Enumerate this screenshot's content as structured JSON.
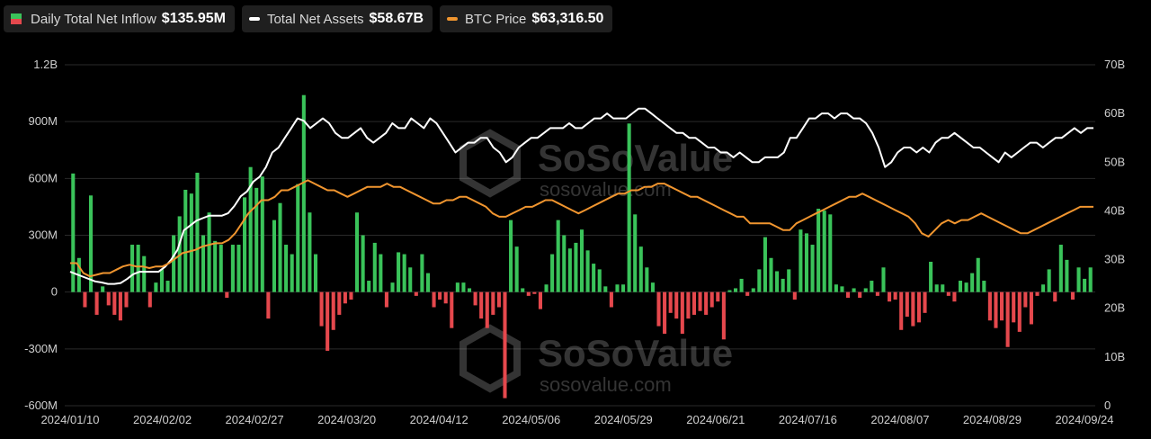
{
  "legend": [
    {
      "label": "Daily Total Net Inflow",
      "value": "$135.95M",
      "swatch": "bar"
    },
    {
      "label": "Total Net Assets",
      "value": "$58.67B",
      "swatch": "line",
      "color": "#ffffff"
    },
    {
      "label": "BTC Price",
      "value": "$63,316.50",
      "swatch": "line",
      "color": "#f0952f"
    }
  ],
  "watermark": {
    "brand": "SoSoValue",
    "url": "sosovalue.com"
  },
  "colors": {
    "inflow_positive": "#3ac35a",
    "inflow_negative": "#e5484d",
    "assets": "#ffffff",
    "btc": "#f0952f",
    "grid": "#2a2a2a"
  },
  "chart_data": {
    "type": "bar+line",
    "x_tick_labels": [
      "2024/01/10",
      "2024/02/02",
      "2024/02/27",
      "2024/03/20",
      "2024/04/12",
      "2024/05/06",
      "2024/05/29",
      "2024/06/21",
      "2024/07/16",
      "2024/08/07",
      "2024/08/29",
      "2024/09/24"
    ],
    "y_left": {
      "ticks": [
        "1.2B",
        "900M",
        "600M",
        "300M",
        "0",
        "-300M",
        "-600M"
      ],
      "range": [
        -600,
        1200
      ],
      "unit": "M"
    },
    "y_right": {
      "ticks": [
        "70B",
        "60B",
        "50B",
        "40B",
        "30B",
        "20B",
        "10B",
        "0"
      ],
      "range": [
        0,
        70
      ],
      "unit": "B"
    },
    "grid": "horizontal",
    "series": [
      {
        "name": "Daily Total Net Inflow",
        "kind": "bar",
        "axis": "left",
        "values": [
          626,
          180,
          -80,
          510,
          -120,
          30,
          -70,
          -120,
          -150,
          -80,
          250,
          250,
          190,
          -80,
          50,
          120,
          60,
          300,
          400,
          540,
          520,
          630,
          300,
          420,
          270,
          250,
          -30,
          250,
          250,
          500,
          660,
          550,
          610,
          -140,
          380,
          470,
          250,
          200,
          570,
          1040,
          420,
          200,
          -180,
          -310,
          -200,
          -120,
          -60,
          -40,
          420,
          300,
          60,
          260,
          200,
          -80,
          50,
          210,
          200,
          130,
          -20,
          200,
          100,
          -80,
          -40,
          -60,
          -190,
          50,
          50,
          20,
          -70,
          -140,
          -190,
          -120,
          -80,
          -560,
          380,
          240,
          20,
          -20,
          -10,
          -90,
          40,
          200,
          380,
          300,
          230,
          260,
          330,
          220,
          150,
          120,
          30,
          -80,
          40,
          40,
          890,
          410,
          240,
          130,
          50,
          -180,
          -220,
          -110,
          -140,
          -220,
          -140,
          -120,
          -100,
          -120,
          -80,
          -50,
          -250,
          10,
          20,
          70,
          -20,
          20,
          120,
          290,
          180,
          110,
          70,
          120,
          -40,
          330,
          310,
          250,
          440,
          430,
          410,
          40,
          30,
          -30,
          20,
          -30,
          20,
          60,
          -20,
          130,
          -50,
          -40,
          -200,
          -130,
          -180,
          -160,
          -110,
          160,
          40,
          40,
          -20,
          -50,
          60,
          50,
          100,
          180,
          60,
          -150,
          -190,
          -150,
          -290,
          -160,
          -210,
          -80,
          -170,
          -20,
          40,
          120,
          -50,
          250,
          170,
          -40,
          130,
          70,
          130
        ]
      },
      {
        "name": "Total Net Assets",
        "kind": "line",
        "axis": "right",
        "values": [
          27.5,
          27,
          26.5,
          26,
          25.5,
          25.3,
          25,
          25,
          25.2,
          26,
          27,
          27.5,
          27.5,
          27.5,
          27.5,
          28.5,
          30,
          32,
          36,
          37,
          38,
          38.5,
          39,
          39,
          39,
          39.5,
          41,
          43,
          44,
          46,
          47,
          49,
          52,
          53,
          55,
          57,
          59,
          58.5,
          57,
          58,
          59,
          58,
          56,
          55,
          55,
          56,
          57,
          55,
          54,
          55,
          56,
          58,
          57,
          57,
          59,
          58,
          57,
          59,
          58,
          56,
          54,
          52,
          53,
          54,
          54,
          55,
          55,
          53,
          52,
          50,
          51,
          53,
          54,
          55,
          55,
          56,
          57,
          57,
          57,
          58,
          57,
          57,
          58,
          59,
          59,
          60,
          59,
          59,
          59,
          60,
          61,
          61,
          60,
          59,
          58,
          57,
          56,
          56,
          55,
          55,
          54,
          53,
          53,
          52,
          52,
          51,
          52,
          51,
          50,
          50,
          51,
          51,
          51,
          52,
          55,
          55,
          57,
          59,
          59,
          60,
          60,
          59,
          60,
          60,
          59,
          59,
          58,
          56,
          53,
          49,
          50,
          52,
          53,
          53,
          52,
          53,
          52,
          54,
          55,
          55,
          56,
          55,
          54,
          53,
          53,
          52,
          51,
          50,
          52,
          51,
          52,
          53,
          54,
          54,
          53,
          54,
          55,
          55,
          56,
          57,
          56,
          57,
          57
        ],
        "note": "approximate"
      },
      {
        "name": "BTC Price",
        "kind": "line",
        "axis": "right_scaled",
        "values": [
          46,
          46,
          43,
          42,
          42.5,
          43,
          43,
          44,
          45,
          45.5,
          45,
          45,
          44.5,
          45,
          45,
          46,
          47.5,
          49,
          49.5,
          50,
          51,
          51.5,
          52,
          52,
          53,
          55,
          58,
          61,
          63,
          65,
          65,
          66,
          68,
          68,
          69,
          70,
          71,
          70,
          69,
          68,
          68,
          67,
          66,
          67,
          68,
          69,
          69,
          69,
          70,
          69,
          69,
          68,
          67,
          66,
          65,
          64,
          64,
          65,
          65,
          66,
          66,
          65,
          64,
          63,
          61,
          60,
          60,
          61,
          62,
          63,
          63,
          64,
          65,
          65,
          64,
          63,
          62,
          61,
          62,
          63,
          64,
          65,
          66,
          67,
          67,
          68,
          68,
          69,
          69,
          70,
          70,
          69,
          68,
          67,
          66,
          66,
          65,
          64,
          63,
          62,
          61,
          60,
          60,
          58,
          58,
          58,
          58,
          57,
          56,
          56,
          58,
          59,
          60,
          61,
          62,
          63,
          64,
          65,
          66,
          66,
          67,
          66,
          65,
          64,
          63,
          62,
          61,
          60,
          58,
          55,
          54,
          56,
          58,
          59,
          58,
          59,
          59,
          60,
          61,
          60,
          59,
          58,
          57,
          56,
          55,
          55,
          56,
          57,
          58,
          59,
          60,
          61,
          62,
          63,
          63,
          63
        ],
        "note": "approximate, plotted against scaled right axis"
      }
    ]
  }
}
